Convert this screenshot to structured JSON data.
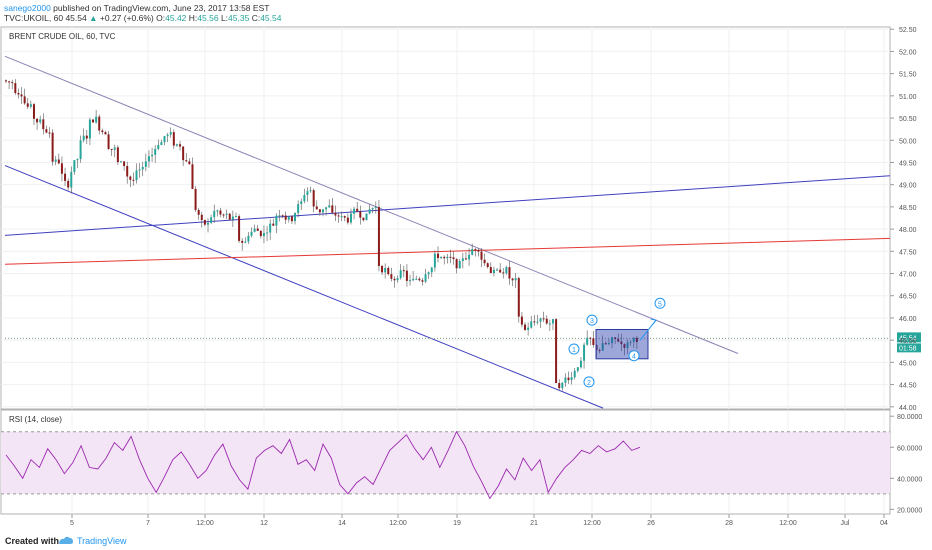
{
  "header": {
    "user": "sanego2000",
    "published": " published on TradingView.com, June 23, 2017 13:58 EST",
    "symbol": "TVC:UKOIL, 60",
    "last": "45.54",
    "change": "+0.27 (+0.6%)",
    "o": "45.42",
    "h": "45.56",
    "l": "45.35",
    "c": "45.54"
  },
  "footer": {
    "created_with": "Created with",
    "brand": "TradingView"
  },
  "colors": {
    "up": "#26a69a",
    "down": "#8b1a1a",
    "channel": "#4040c0",
    "trend": "#8c82b4",
    "red_line": "#e53935",
    "rsi": "#9c27b0",
    "rsi_band": "#f3e5f5"
  },
  "chart_data": [
    {
      "type": "candlestick",
      "title": "BRENT CRUDE OIL, 60, TVC",
      "y_ticks": [
        "52.50",
        "52.00",
        "51.50",
        "51.00",
        "50.50",
        "50.00",
        "49.50",
        "49.00",
        "48.50",
        "48.00",
        "47.50",
        "47.00",
        "46.50",
        "46.00",
        "45.50",
        "45.00",
        "44.50",
        "44.00"
      ],
      "ylim": [
        43.95,
        52.55
      ],
      "x_ticks": [
        "5",
        "7",
        "12:00",
        "12",
        "14",
        "12:00",
        "19",
        "21",
        "12:00",
        "26",
        "28",
        "12:00",
        "Jul",
        "04"
      ],
      "last_price_label": "45.54",
      "countdown_label": "01:58",
      "approx_close_path": [
        51.3,
        51.1,
        50.7,
        50.4,
        50.2,
        49.5,
        49.0,
        49.6,
        50.1,
        50.5,
        50.2,
        49.8,
        49.4,
        49.1,
        49.3,
        49.7,
        50.0,
        50.1,
        49.9,
        49.5,
        48.3,
        48.1,
        48.4,
        48.3,
        48.2,
        47.7,
        48.0,
        47.9,
        48.1,
        48.4,
        48.2,
        48.6,
        48.9,
        48.4,
        48.5,
        48.3,
        48.2,
        48.4,
        48.3,
        48.5,
        47.1,
        46.9,
        47.0,
        46.8,
        46.9,
        47.2,
        47.4,
        47.3,
        47.2,
        47.4,
        47.6,
        47.2,
        47.0,
        47.1,
        46.8,
        45.7,
        45.9,
        46.0,
        45.9,
        44.5,
        44.7,
        45.0,
        45.5,
        45.3,
        45.4,
        45.5,
        45.4,
        45.54
      ],
      "annotations": [
        "1",
        "2",
        "3",
        "4",
        "5"
      ],
      "overlays": [
        "descending channel upper line",
        "descending channel lower line",
        "rising blue line",
        "rising red line",
        "consolidation box"
      ],
      "grid": true,
      "legend": "none"
    },
    {
      "type": "line",
      "title": "RSI (14, close)",
      "y_ticks": [
        "80.0000",
        "60.0000",
        "40.0000",
        "20.0000"
      ],
      "ylim": [
        17,
        84
      ],
      "bands": [
        70,
        30
      ],
      "approx_values": [
        55,
        48,
        40,
        52,
        47,
        59,
        52,
        43,
        50,
        61,
        47,
        46,
        53,
        63,
        58,
        67,
        52,
        40,
        31,
        41,
        52,
        57,
        49,
        40,
        45,
        55,
        62,
        48,
        39,
        33,
        53,
        58,
        61,
        56,
        65,
        49,
        52,
        45,
        62,
        53,
        36,
        30,
        37,
        41,
        36,
        47,
        58,
        63,
        68,
        59,
        52,
        60,
        47,
        58,
        70,
        61,
        48,
        38,
        27,
        35,
        46,
        39,
        53,
        45,
        52,
        31,
        40,
        47,
        52,
        58,
        56,
        61,
        57,
        59,
        64,
        58,
        60
      ]
    }
  ]
}
